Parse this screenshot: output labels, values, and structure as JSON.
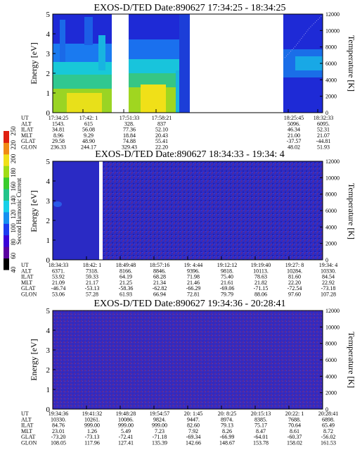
{
  "colors": {
    "background_blue": "#3a3acc",
    "deep_blue": "#1a1aa8",
    "purple_speckle": "#5a2a9a",
    "navy_region": "#1c1cb4"
  },
  "colorbar": {
    "label": "Second Harmonic Current",
    "ticks": [
      "40",
      "60",
      "80",
      "100",
      "120",
      "140",
      "160",
      "180",
      "200",
      "220",
      "250"
    ],
    "colors": [
      "#000000",
      "#5a00a0",
      "#3a00d8",
      "#1d3cf0",
      "#1690f0",
      "#17d0e8",
      "#22c48a",
      "#39cc2c",
      "#a0dc14",
      "#f0e018",
      "#f08a14",
      "#e02010"
    ]
  },
  "chart_data": [
    {
      "type": "heatmap",
      "title": "EXOS-D/TED   Date:890627   17:34:25 - 18:34:25",
      "ylabel": "Energy [eV]",
      "ylabel2": "Temperature [K]",
      "ylim": [
        0,
        5
      ],
      "y2lim": [
        0,
        12000
      ],
      "yticks": [
        "0",
        "1",
        "2",
        "3",
        "4",
        "5"
      ],
      "y2ticks": [
        "0",
        "2000",
        "4000",
        "6000",
        "8000",
        "10000",
        "12000"
      ],
      "table": {
        "row_labels": [
          "UT",
          "ALT",
          "ILAT",
          "MLT",
          "GLAT",
          "GLON"
        ],
        "columns": [
          [
            "17:34:25",
            "1543.",
            "34.81",
            "8.96",
            "29.58",
            "236.33"
          ],
          [
            "17:42: 1",
            "615",
            "56.08",
            "9.29",
            "48.90",
            "244.17"
          ],
          [
            "17:51:33",
            "328.",
            "77.36",
            "18.84",
            "74.88",
            "329.43"
          ],
          [
            "17:58:21",
            "837",
            "52.10",
            "20.43",
            "55.41",
            "22.20"
          ],
          [
            "18:25:45",
            "5096.",
            "46.34",
            "21.00",
            "-37.57",
            "48.02"
          ],
          [
            "18:32:33",
            "6095.",
            "52.31",
            "21.07",
            "-44.81",
            "51.93"
          ]
        ]
      }
    },
    {
      "type": "heatmap",
      "title": "EXOS-D/TED   Date:890627   18:34:33 - 19:34: 4",
      "ylabel": "Energy [eV]",
      "ylabel2": "Temperature [K]",
      "ylim": [
        0,
        5
      ],
      "y2lim": [
        0,
        12000
      ],
      "yticks": [
        "0",
        "1",
        "2",
        "3",
        "4",
        "5"
      ],
      "y2ticks": [
        "0",
        "2000",
        "4000",
        "6000",
        "8000",
        "10000",
        "12000"
      ],
      "table": {
        "row_labels": [
          "UT",
          "ALT",
          "ILAT",
          "MLT",
          "GLAT",
          "GLON"
        ],
        "columns": [
          [
            "18:34:33",
            "6371.",
            "53.92",
            "21.09",
            "-46.74",
            "53.06"
          ],
          [
            "18:42: 1",
            "7318.",
            "59.33",
            "21.17",
            "-53.13",
            "57.28"
          ],
          [
            "18:49:48",
            "8166.",
            "64.19",
            "21.25",
            "-58.36",
            "61.93"
          ],
          [
            "18:57:16",
            "8846.",
            "68.28",
            "21.34",
            "-62.82",
            "66.94"
          ],
          [
            "19: 4:44",
            "9396.",
            "71.98",
            "21.46",
            "-66.29",
            "72.81"
          ],
          [
            "19:12:12",
            "9818.",
            "75.40",
            "21.61",
            "-69.06",
            "79.79"
          ],
          [
            "19:19:40",
            "10113.",
            "78.63",
            "21.82",
            "-71.15",
            "88.06"
          ],
          [
            "19:27: 8",
            "10284.",
            "81.60",
            "22.20",
            "-72.54",
            "97.60"
          ],
          [
            "19:34: 4",
            "10330.",
            "84.54",
            "22.92",
            "-73.18",
            "107.28"
          ]
        ]
      }
    },
    {
      "type": "heatmap",
      "title": "EXOS-D/TED   Date:890627   19:34:36 - 20:28:41",
      "ylabel": "Energy [eV]",
      "ylabel2": "Temperature [K]",
      "ylim": [
        0,
        5
      ],
      "y2lim": [
        0,
        12000
      ],
      "yticks": [
        "0",
        "1",
        "2",
        "3",
        "4",
        "5"
      ],
      "y2ticks": [
        "0",
        "2000",
        "4000",
        "6000",
        "8000",
        "10000",
        "12000"
      ],
      "table": {
        "row_labels": [
          "UT",
          "ALT",
          "ILAT",
          "MLT",
          "GLAT",
          "GLON"
        ],
        "columns": [
          [
            "19:34:36",
            "10330.",
            "84.76",
            "23.01",
            "-73.20",
            "108.05"
          ],
          [
            "19:41:32",
            "10261.",
            "999.00",
            "1.26",
            "-73.13",
            "117.96"
          ],
          [
            "19:48:28",
            "10086.",
            "999.00",
            "5.49",
            "-72.41",
            "127.41"
          ],
          [
            "19:54:57",
            "9824.",
            "999.00",
            "7.23",
            "-71.18",
            "135.39"
          ],
          [
            "20: 1:45",
            "9447.",
            "82.60",
            "7.92",
            "-69.34",
            "142.66"
          ],
          [
            "20: 8:25",
            "8974.",
            "79.13",
            "8.26",
            "-66.99",
            "148.67"
          ],
          [
            "20:15:13",
            "8385.",
            "75.17",
            "8.47",
            "-64.01",
            "153.78"
          ],
          [
            "20:22: 1",
            "7688.",
            "70.64",
            "8.61",
            "-60.37",
            "158.02"
          ],
          [
            "20:28:41",
            "6898.",
            "65.49",
            "8.72",
            "-56.02",
            "161.53"
          ]
        ]
      }
    }
  ]
}
